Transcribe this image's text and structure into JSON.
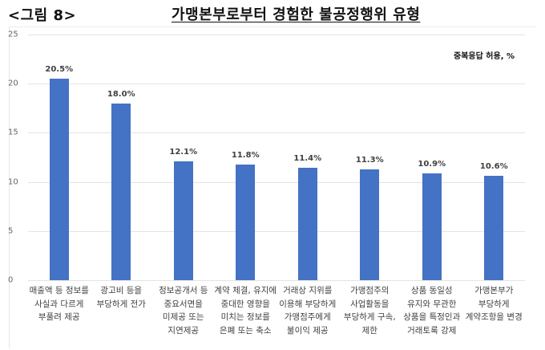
{
  "header": {
    "figure_label": "<그림 8>",
    "title": "가맹본부로부터 경험한 불공정행위 유형"
  },
  "note": "중복응답 허용, %",
  "chart_data": {
    "type": "bar",
    "title": "가맹본부로부터 경험한 불공정행위 유형",
    "subtitle": "중복응답 허용, %",
    "xlabel": "",
    "ylabel": "",
    "ylim": [
      0,
      25
    ],
    "yticks": [
      0,
      5,
      10,
      15,
      20,
      25
    ],
    "grid": true,
    "legend": null,
    "bar_color": "#4472c4",
    "categories": [
      "매출액 등 정보를\n사실과 다르게\n부풀려 제공",
      "광고비 등을\n부당하게 전가",
      "정보공개서 등\n중요서면을\n미제공 또는\n지연제공",
      "계약 체결, 유지에\n중대한 영향을\n미치는 정보를\n은폐 또는 축소",
      "거래상 지위를\n이용해 부당하게\n가맹점주에게\n불이익 제공",
      "가맹점주의\n사업활동을\n부당하게 구속,\n제한",
      "상품 동일성\n유지와 무관한\n상품을 특정인과\n거래토록 강제",
      "가맹본부가\n부당하게\n계약조항을 변경"
    ],
    "values": [
      20.5,
      18.0,
      12.1,
      11.8,
      11.4,
      11.3,
      10.9,
      10.6
    ],
    "data_labels": [
      "20.5%",
      "18.0%",
      "12.1%",
      "11.8%",
      "11.4%",
      "11.3%",
      "10.9%",
      "10.6%"
    ]
  }
}
